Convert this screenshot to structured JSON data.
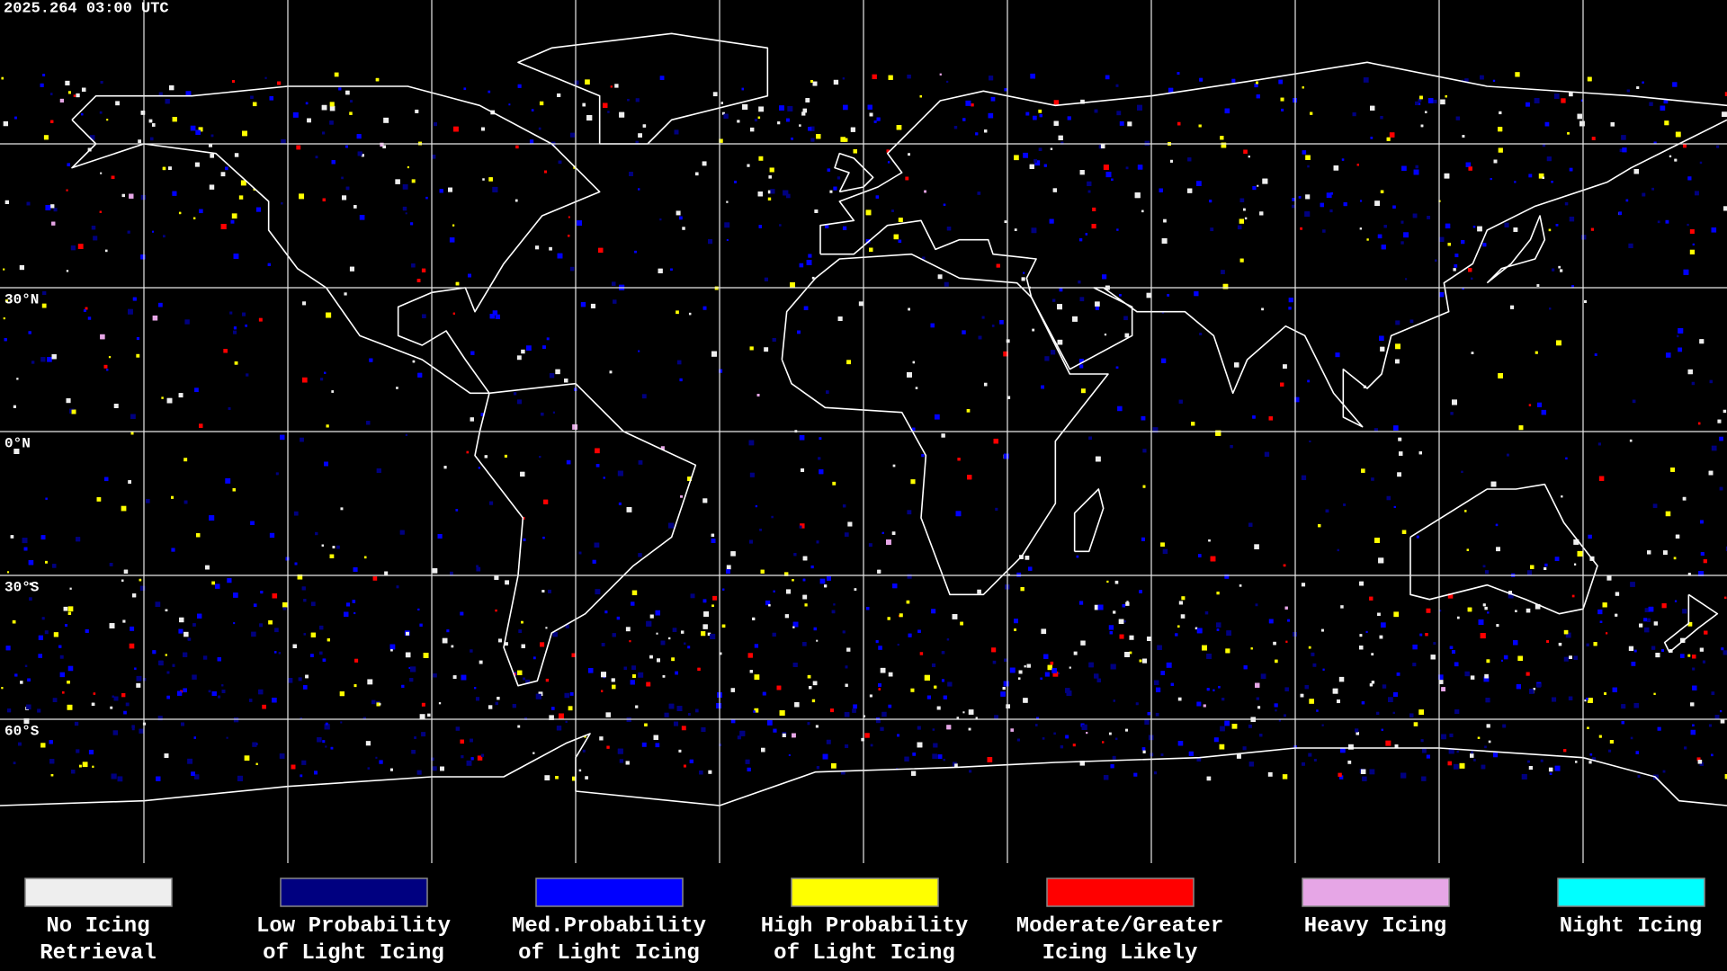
{
  "header": {
    "timestamp": "2025.264 03:00 UTC"
  },
  "map": {
    "latitude_labels": [
      "30°N",
      "0°N",
      "30°S",
      "60°S"
    ]
  },
  "legend": [
    {
      "label_lines": [
        "No Icing",
        "Retrieval"
      ],
      "color": "#eeeeee"
    },
    {
      "label_lines": [
        "Low Probability",
        "of Light Icing"
      ],
      "color": "#000080"
    },
    {
      "label_lines": [
        "Med.Probability",
        "of Light Icing"
      ],
      "color": "#0000ff"
    },
    {
      "label_lines": [
        "High Probability",
        "of Light Icing"
      ],
      "color": "#ffff00"
    },
    {
      "label_lines": [
        "Moderate/Greater",
        "Icing Likely"
      ],
      "color": "#ff0000"
    },
    {
      "label_lines": [
        "Heavy Icing"
      ],
      "color": "#e6a6e6"
    },
    {
      "label_lines": [
        "Night Icing"
      ],
      "color": "#00ffff"
    }
  ]
}
